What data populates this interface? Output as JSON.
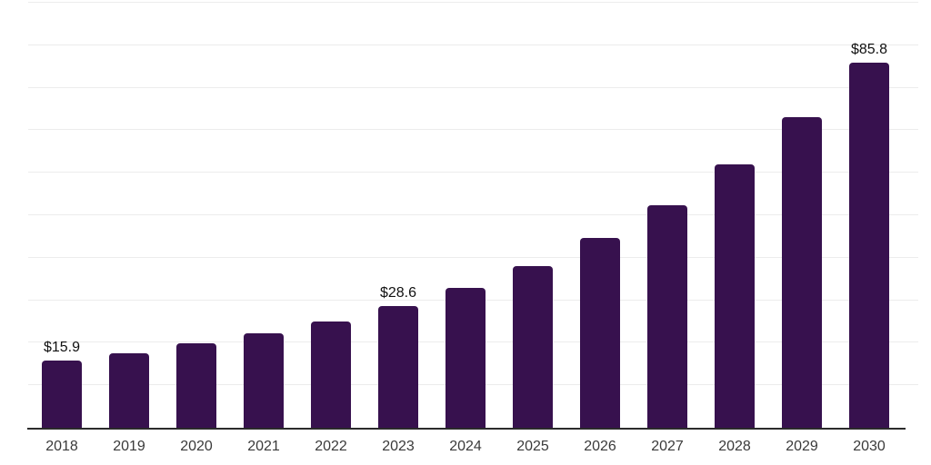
{
  "chart_data": {
    "type": "bar",
    "title": "",
    "xlabel": "",
    "ylabel": "",
    "categories": [
      "2018",
      "2019",
      "2020",
      "2021",
      "2022",
      "2023",
      "2024",
      "2025",
      "2026",
      "2027",
      "2028",
      "2029",
      "2030"
    ],
    "values": [
      15.9,
      17.6,
      19.9,
      22.2,
      25.1,
      28.6,
      33.0,
      38.1,
      44.6,
      52.3,
      62.0,
      73.1,
      85.8
    ],
    "labels": [
      "$15.9",
      "",
      "",
      "",
      "",
      "$28.6",
      "",
      "",
      "",
      "",
      "",
      "",
      "$85.8"
    ],
    "ylim": [
      0,
      100
    ],
    "gridline_step": 10,
    "grid": true,
    "legend": false,
    "y_axis_labels_visible": false,
    "colors": {
      "bar": "#37114E",
      "gridline": "#ECECEC",
      "axis_line": "#2B2B2B",
      "tick_label": "#3A3A3A",
      "value_label": "#111111",
      "background": "#FFFFFF"
    }
  }
}
